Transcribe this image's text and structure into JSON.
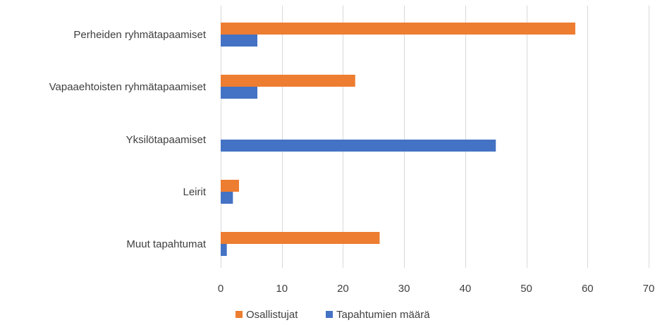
{
  "chart_data": {
    "type": "bar",
    "orientation": "horizontal",
    "categories": [
      "Perheiden ryhmätapaamiset",
      "Vapaaehtoisten ryhmätapaamiset",
      "Yksilötapaamiset",
      "Leirit",
      "Muut tapahtumat"
    ],
    "series": [
      {
        "name": "Osallistujat",
        "color": "#ed7d31",
        "values": [
          58,
          22,
          0,
          3,
          26
        ]
      },
      {
        "name": "Tapahtumien määrä",
        "color": "#4472c4",
        "values": [
          6,
          6,
          45,
          2,
          1
        ]
      }
    ],
    "title": "",
    "xlabel": "",
    "ylabel": "",
    "xlim": [
      0,
      70
    ],
    "xticks": [
      0,
      10,
      20,
      30,
      40,
      50,
      60,
      70
    ],
    "grid": "vertical",
    "legend": "bottom-center"
  }
}
